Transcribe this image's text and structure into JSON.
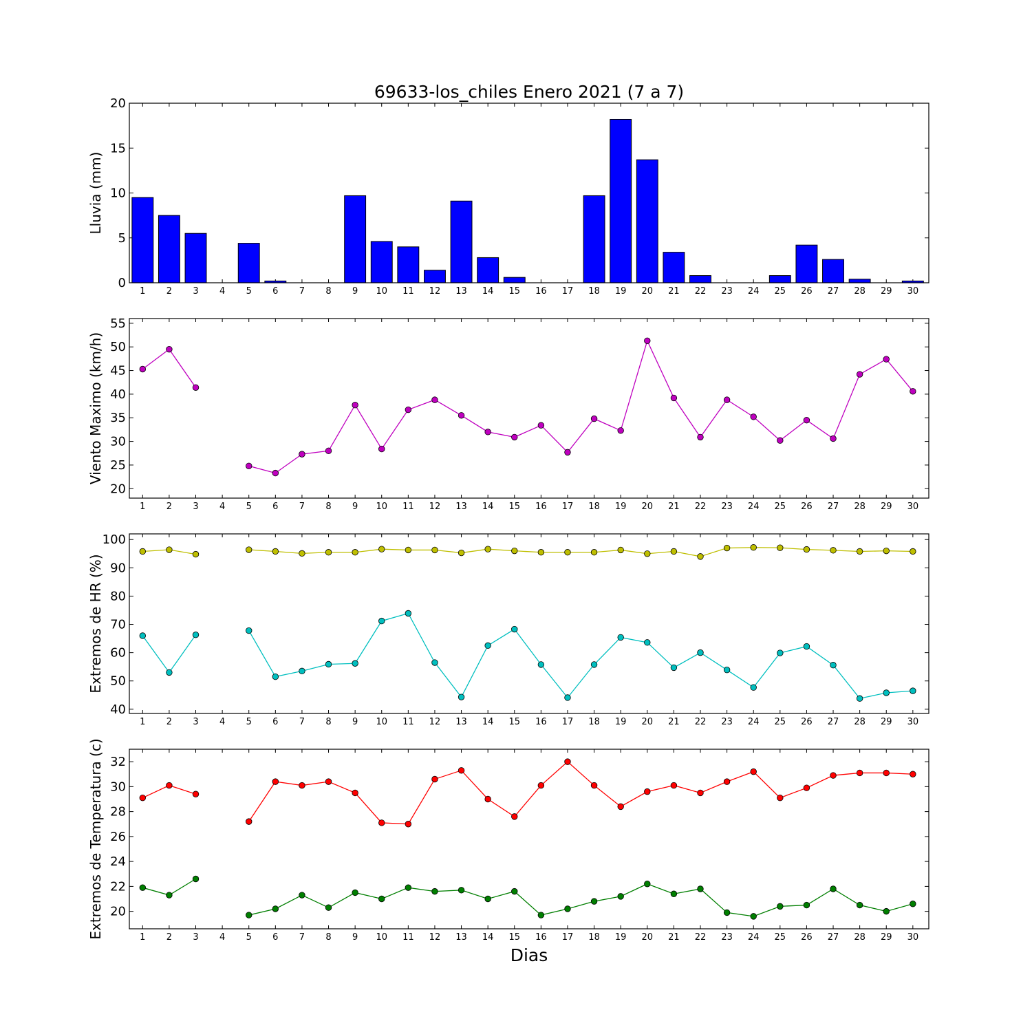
{
  "chart_data": {
    "title": "69633-los_chiles Enero 2021  (7 a 7)",
    "xlabel": "Dias",
    "days": [
      1,
      2,
      3,
      4,
      5,
      6,
      7,
      8,
      9,
      10,
      11,
      12,
      13,
      14,
      15,
      16,
      17,
      18,
      19,
      20,
      21,
      22,
      23,
      24,
      25,
      26,
      27,
      28,
      29,
      30
    ],
    "panels": [
      {
        "id": "lluvia",
        "type": "bar",
        "ylabel": "Lluvia (mm)",
        "ylim": [
          0,
          20
        ],
        "yticks": [
          0,
          5,
          10,
          15,
          20
        ],
        "series": [
          {
            "color": "#0000ff",
            "values": [
              9.5,
              7.5,
              5.5,
              0,
              4.4,
              0.2,
              0,
              0,
              9.7,
              4.6,
              4.0,
              1.4,
              9.1,
              2.8,
              0.6,
              0,
              0,
              9.7,
              18.2,
              13.7,
              3.4,
              0.8,
              0,
              0,
              0.8,
              4.2,
              2.6,
              0.4,
              0,
              0.2
            ]
          }
        ]
      },
      {
        "id": "viento",
        "type": "line",
        "ylabel": "Viento Maximo (km/h)",
        "ylim": [
          18,
          56
        ],
        "yticks": [
          20,
          25,
          30,
          35,
          40,
          45,
          50,
          55
        ],
        "series": [
          {
            "color": "#bf00bf",
            "values": [
              45.3,
              49.5,
              41.4,
              null,
              24.8,
              23.3,
              27.3,
              28.0,
              37.7,
              28.4,
              36.7,
              38.8,
              35.5,
              32.0,
              30.9,
              33.4,
              27.7,
              34.8,
              32.3,
              51.3,
              39.2,
              30.9,
              38.8,
              35.2,
              30.2,
              34.5,
              30.6,
              44.2,
              47.4,
              40.6
            ]
          }
        ]
      },
      {
        "id": "hr",
        "type": "line",
        "ylabel": "Extremos de HR (%)",
        "ylim": [
          38.5,
          102
        ],
        "yticks": [
          40,
          50,
          60,
          70,
          80,
          90,
          100
        ],
        "series": [
          {
            "color": "#bfbf00",
            "values": [
              95.8,
              96.4,
              94.8,
              null,
              96.4,
              95.8,
              95.1,
              95.5,
              95.5,
              96.6,
              96.3,
              96.3,
              95.3,
              96.6,
              96.0,
              95.5,
              95.5,
              95.5,
              96.3,
              95.0,
              95.8,
              94.0,
              97.0,
              97.2,
              97.1,
              96.5,
              96.2,
              95.8,
              96.0,
              95.8
            ]
          },
          {
            "color": "#00bfbf",
            "values": [
              66.0,
              53.0,
              66.3,
              null,
              67.8,
              51.5,
              53.5,
              55.9,
              56.2,
              71.2,
              73.9,
              56.5,
              44.3,
              62.5,
              68.3,
              55.8,
              44.1,
              55.8,
              65.4,
              63.6,
              54.7,
              60.0,
              53.9,
              47.7,
              59.9,
              62.2,
              55.6,
              43.8,
              45.8,
              46.5
            ]
          }
        ]
      },
      {
        "id": "temp",
        "type": "line",
        "ylabel": "Extremos de Temperatura (c)",
        "ylim": [
          18.6,
          33
        ],
        "yticks": [
          20,
          22,
          24,
          26,
          28,
          30,
          32
        ],
        "series": [
          {
            "color": "#ff0000",
            "values": [
              29.1,
              30.1,
              29.4,
              null,
              27.2,
              30.4,
              30.1,
              30.4,
              29.5,
              27.1,
              27.0,
              30.6,
              31.3,
              29.0,
              27.6,
              30.1,
              32.0,
              30.1,
              28.4,
              29.6,
              30.1,
              29.5,
              30.4,
              31.2,
              29.1,
              29.9,
              30.9,
              31.1,
              31.1,
              31.0
            ]
          },
          {
            "color": "#007f00",
            "values": [
              21.9,
              21.3,
              22.6,
              null,
              19.7,
              20.2,
              21.3,
              20.3,
              21.5,
              21.0,
              21.9,
              21.6,
              21.7,
              21.0,
              21.6,
              19.7,
              20.2,
              20.8,
              21.2,
              22.2,
              21.4,
              21.8,
              19.9,
              19.6,
              20.4,
              20.5,
              21.8,
              20.5,
              20.0,
              20.6
            ]
          }
        ]
      }
    ]
  }
}
